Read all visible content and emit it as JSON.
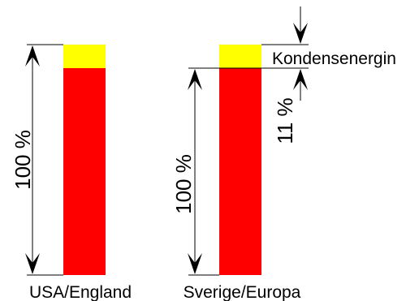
{
  "bars": [
    {
      "caption": "USA/England",
      "height_label": "100 %"
    },
    {
      "caption": "Sverige/Europa",
      "height_label": "100 %"
    }
  ],
  "annotations": {
    "energy_label": "Kondensenergin",
    "energy_percent_label": "11 %"
  },
  "colors": {
    "top_segment": "#ffff00",
    "main_segment": "#ff0000",
    "lines": "#000000"
  }
}
